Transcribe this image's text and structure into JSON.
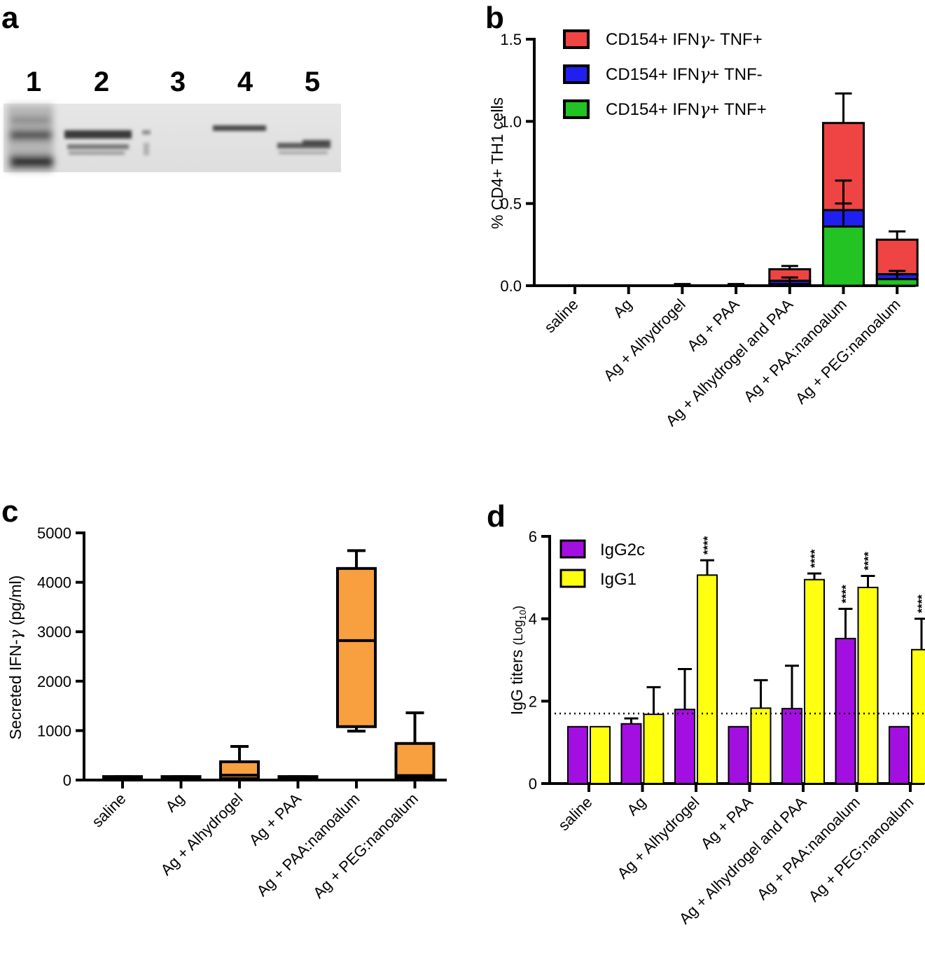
{
  "panels": {
    "a": {
      "label": "a",
      "lanes": [
        "1",
        "2",
        "3",
        "4",
        "5"
      ]
    },
    "b": {
      "label": "b"
    },
    "c": {
      "label": "c"
    },
    "d": {
      "label": "d"
    }
  },
  "categories": {
    "six": [
      "saline",
      "Ag",
      "Ag + Alhydrogel",
      "Ag + PAA",
      "Ag + PAA:nanoalum",
      "Ag + PEG:nanoalum"
    ],
    "seven": [
      "saline",
      "Ag",
      "Ag + Alhydrogel",
      "Ag +  PAA",
      "Ag + Alhydrogel and PAA",
      "Ag + PAA:nanoalum",
      "Ag + PEG:nanoalum"
    ],
    "seven_d": [
      "saline",
      "Ag",
      "Ag + Alhydrogel",
      "Ag + PAA",
      "Ag + Alhydrogel and PAA",
      "Ag + PAA:nanoalum",
      "Ag + PEG:nanoalum"
    ]
  },
  "colors": {
    "tnf_only": "#ef4444",
    "ifng_only": "#1f1ff0",
    "double": "#22c322",
    "box": "#f8a040",
    "igg2c": "#a30fe0",
    "igg1": "#ffff10"
  },
  "chart_data": [
    {
      "panel": "b",
      "type": "bar",
      "stacked": true,
      "title": "",
      "ylabel": "% CD4+ TH1 cells",
      "ylim": [
        0,
        1.5
      ],
      "yticks": [
        "0.0",
        "0.5",
        "1.0",
        "1.5"
      ],
      "ytick_values": [
        0,
        0.5,
        1.0,
        1.5
      ],
      "categories_key": "seven",
      "legend_position": "top-right",
      "series": [
        {
          "name": "CD154+ IFNγ+ TNF+",
          "legend": [
            "CD154+ IFN",
            "γ",
            "+ TNF+"
          ],
          "color_key": "double",
          "values": [
            0,
            0,
            0,
            0,
            0.01,
            0.36,
            0.04
          ],
          "err": [
            0,
            0,
            0,
            0,
            0.02,
            0.28,
            0.03
          ]
        },
        {
          "name": "CD154+ IFNγ+ TNF-",
          "legend": [
            "CD154+ IFN",
            "γ",
            "+ TNF-"
          ],
          "color_key": "ifng_only",
          "values": [
            0,
            0,
            0,
            0,
            0.02,
            0.1,
            0.03
          ],
          "err": [
            0,
            0,
            0,
            0,
            0.02,
            0.04,
            0.02
          ]
        },
        {
          "name": "CD154+ IFNγ- TNF+",
          "legend": [
            "CD154+ IFN",
            "γ",
            "- TNF+"
          ],
          "color_key": "tnf_only",
          "values": [
            0,
            0,
            0,
            0,
            0.07,
            0.53,
            0.21
          ],
          "err": [
            0,
            0,
            0.01,
            0.01,
            0.02,
            0.18,
            0.05
          ]
        }
      ]
    },
    {
      "panel": "c",
      "type": "box",
      "title": "",
      "ylabel": [
        "Secreted  IFN-",
        "γ",
        " (pg/ml)"
      ],
      "ylim": [
        0,
        5000
      ],
      "yticks": [
        "0",
        "1000",
        "2000",
        "3000",
        "4000",
        "5000"
      ],
      "ytick_values": [
        0,
        1000,
        2000,
        3000,
        4000,
        5000
      ],
      "categories_key": "six",
      "boxes": [
        {
          "min": 30,
          "q1": 30,
          "median": 50,
          "q3": 70,
          "max": 70
        },
        {
          "min": 30,
          "q1": 30,
          "median": 50,
          "q3": 70,
          "max": 70
        },
        {
          "min": 30,
          "q1": 30,
          "median": 100,
          "q3": 370,
          "max": 680
        },
        {
          "min": 30,
          "q1": 30,
          "median": 50,
          "q3": 70,
          "max": 70
        },
        {
          "min": 990,
          "q1": 1080,
          "median": 2820,
          "q3": 4280,
          "max": 4640
        },
        {
          "min": 50,
          "q1": 50,
          "median": 90,
          "q3": 740,
          "max": 1360
        }
      ]
    },
    {
      "panel": "d",
      "type": "bar",
      "title": "",
      "ylabel": [
        "IgG titers ",
        "(Log",
        "10",
        ")"
      ],
      "ylim": [
        0,
        6
      ],
      "yticks": [
        "0",
        "2",
        "4",
        "6"
      ],
      "ytick_values": [
        0,
        2,
        4,
        6
      ],
      "categories_key": "seven_d",
      "threshold": 1.7,
      "legend_position": "top-left",
      "series": [
        {
          "name": "IgG2c",
          "color_key": "igg2c",
          "values": [
            1.38,
            1.45,
            1.8,
            1.38,
            1.82,
            3.52,
            1.38
          ],
          "err": [
            0,
            0.13,
            0.98,
            0,
            1.04,
            0.72,
            0
          ],
          "sig": [
            "",
            "",
            "",
            "",
            "",
            "****",
            ""
          ]
        },
        {
          "name": "IgG1",
          "color_key": "igg1",
          "values": [
            1.38,
            1.68,
            5.06,
            1.83,
            4.95,
            4.76,
            3.25
          ],
          "err": [
            0,
            0.66,
            0.36,
            0.68,
            0.15,
            0.28,
            0.75
          ],
          "sig": [
            "",
            "",
            "****",
            "",
            "****",
            "****",
            "****"
          ]
        }
      ]
    }
  ]
}
